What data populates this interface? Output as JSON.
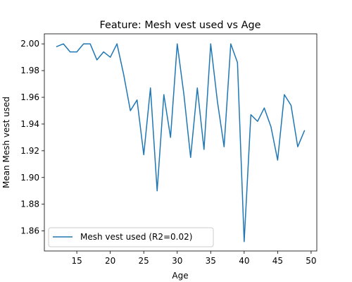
{
  "chart_data": {
    "type": "line",
    "title": "Feature: Mesh vest used vs Age",
    "xlabel": "Age",
    "ylabel": "Mean Mesh vest used",
    "xlim": [
      10.15,
      50.85
    ],
    "ylim": [
      1.845,
      2.0075
    ],
    "xticks": [
      15,
      20,
      25,
      30,
      35,
      40,
      45,
      50
    ],
    "yticks": [
      1.86,
      1.88,
      1.9,
      1.92,
      1.94,
      1.96,
      1.98,
      2.0
    ],
    "xtick_labels": [
      "15",
      "20",
      "25",
      "30",
      "35",
      "40",
      "45",
      "50"
    ],
    "ytick_labels": [
      "1.86",
      "1.88",
      "1.90",
      "1.92",
      "1.94",
      "1.96",
      "1.98",
      "2.00"
    ],
    "grid": false,
    "legend_position": "lower-left",
    "series": [
      {
        "name": "Mesh vest used (R2=0.02)",
        "color": "#1f77b4",
        "x": [
          12,
          13,
          14,
          15,
          16,
          17,
          18,
          19,
          20,
          21,
          22,
          23,
          24,
          25,
          26,
          27,
          28,
          29,
          30,
          31,
          32,
          33,
          34,
          35,
          36,
          37,
          38,
          39,
          40,
          41,
          42,
          43,
          44,
          45,
          46,
          47,
          48,
          49
        ],
        "values": [
          1.998,
          2.0,
          1.994,
          1.994,
          2.0,
          2.0,
          1.988,
          1.994,
          1.99,
          2.0,
          1.977,
          1.95,
          1.958,
          1.917,
          1.967,
          1.89,
          1.962,
          1.93,
          2.0,
          1.962,
          1.915,
          1.967,
          1.921,
          2.0,
          1.957,
          1.923,
          2.0,
          1.986,
          1.852,
          1.947,
          1.942,
          1.952,
          1.938,
          1.913,
          1.962,
          1.954,
          1.923,
          1.935
        ]
      }
    ]
  }
}
